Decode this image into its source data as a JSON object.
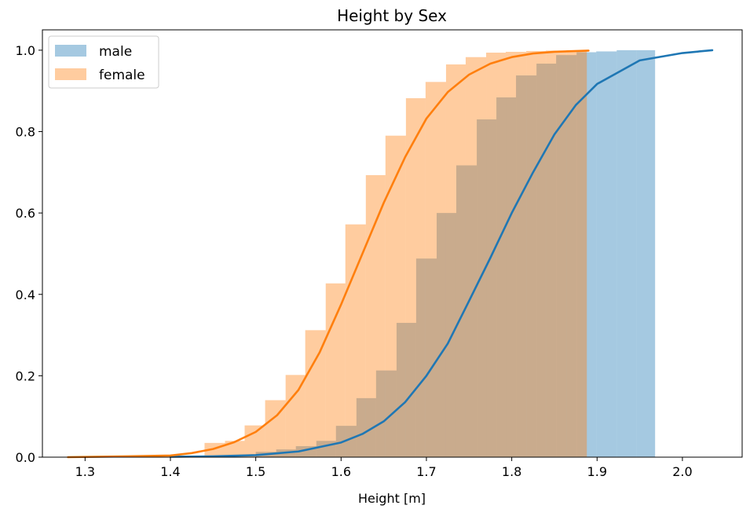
{
  "chart_data": {
    "type": "bar",
    "subtype": "cumulative histogram with fitted CDF lines",
    "title": "Height by Sex",
    "xlabel": "Height [m]",
    "ylabel": "",
    "xlim": [
      1.25,
      2.07
    ],
    "ylim": [
      0.0,
      1.05
    ],
    "xticks": [
      1.3,
      1.4,
      1.5,
      1.6,
      1.7,
      1.8,
      1.9,
      2.0
    ],
    "xtick_labels": [
      "1.3",
      "1.4",
      "1.5",
      "1.6",
      "1.7",
      "1.8",
      "1.9",
      "2.0"
    ],
    "yticks": [
      0.0,
      0.2,
      0.4,
      0.6,
      0.8,
      1.0
    ],
    "ytick_labels": [
      "0.0",
      "0.2",
      "0.4",
      "0.6",
      "0.8",
      "1.0"
    ],
    "grid": false,
    "legend_position": "top-left",
    "legend": [
      "male",
      "female"
    ],
    "series": [
      {
        "name": "male",
        "color": "#1f77b4",
        "histogram": {
          "bin_edges": [
            1.5,
            1.524,
            1.547,
            1.571,
            1.594,
            1.618,
            1.641,
            1.665,
            1.688,
            1.712,
            1.735,
            1.759,
            1.782,
            1.805,
            1.829,
            1.852,
            1.876,
            1.899,
            1.923,
            1.946,
            1.968
          ],
          "values": [
            0.013,
            0.019,
            0.027,
            0.04,
            0.077,
            0.145,
            0.213,
            0.33,
            0.488,
            0.6,
            0.717,
            0.83,
            0.884,
            0.938,
            0.967,
            0.988,
            0.995,
            0.997,
            1.0,
            1.0
          ]
        },
        "cdf_line": {
          "x": [
            1.4,
            1.45,
            1.5,
            1.55,
            1.6,
            1.625,
            1.65,
            1.675,
            1.7,
            1.725,
            1.75,
            1.775,
            1.8,
            1.825,
            1.85,
            1.875,
            1.9,
            1.95,
            2.0,
            2.035
          ],
          "y": [
            0.001,
            0.002,
            0.005,
            0.014,
            0.036,
            0.057,
            0.088,
            0.135,
            0.2,
            0.279,
            0.384,
            0.49,
            0.6,
            0.7,
            0.793,
            0.865,
            0.917,
            0.975,
            0.993,
            1.0
          ]
        }
      },
      {
        "name": "female",
        "color": "#ff7f0e",
        "histogram": {
          "bin_edges": [
            1.44,
            1.464,
            1.487,
            1.511,
            1.535,
            1.558,
            1.582,
            1.605,
            1.629,
            1.652,
            1.676,
            1.699,
            1.723,
            1.746,
            1.77,
            1.793,
            1.817,
            1.84,
            1.864,
            1.888
          ],
          "values": [
            0.035,
            0.04,
            0.078,
            0.14,
            0.202,
            0.312,
            0.427,
            0.572,
            0.693,
            0.79,
            0.882,
            0.922,
            0.965,
            0.983,
            0.994,
            0.996,
            0.998,
            0.999,
            1.0
          ]
        },
        "cdf_line": {
          "x": [
            1.28,
            1.35,
            1.4,
            1.425,
            1.45,
            1.475,
            1.5,
            1.525,
            1.55,
            1.575,
            1.6,
            1.625,
            1.65,
            1.675,
            1.7,
            1.725,
            1.75,
            1.775,
            1.8,
            1.825,
            1.85,
            1.89
          ],
          "y": [
            0.0,
            0.002,
            0.004,
            0.01,
            0.02,
            0.037,
            0.062,
            0.103,
            0.165,
            0.258,
            0.375,
            0.5,
            0.625,
            0.737,
            0.832,
            0.897,
            0.94,
            0.967,
            0.983,
            0.992,
            0.996,
            0.999
          ]
        }
      }
    ]
  }
}
